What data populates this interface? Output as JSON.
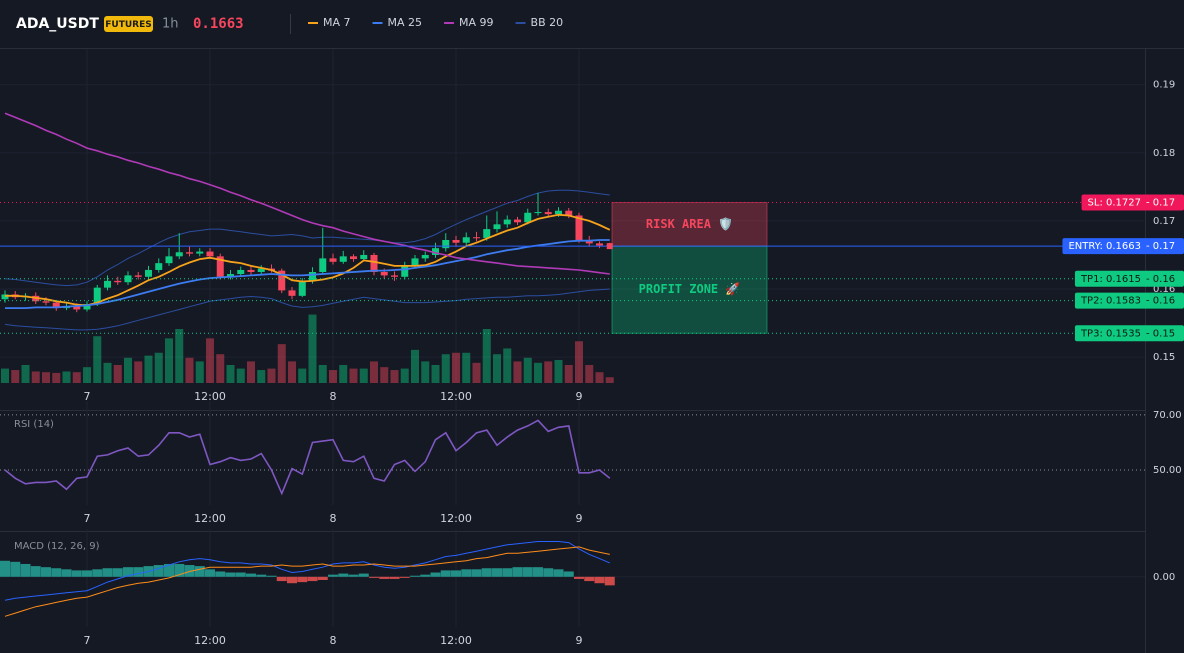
{
  "chart_data": [
    {
      "type": "candlestick",
      "title": "ADA_USDT",
      "badge": "FUTURES",
      "interval": "1h",
      "last_price": 0.1663,
      "categories": [
        null,
        null,
        null,
        null,
        null,
        null,
        null,
        null,
        "7",
        null,
        null,
        null,
        null,
        null,
        null,
        null,
        null,
        null,
        null,
        null,
        "12:00",
        null,
        null,
        null,
        null,
        null,
        null,
        null,
        null,
        null,
        null,
        null,
        "8",
        null,
        null,
        null,
        null,
        null,
        null,
        null,
        null,
        null,
        null,
        null,
        "12:00",
        null,
        null,
        null,
        null,
        null,
        null,
        null,
        null,
        null,
        null,
        null,
        "9",
        null,
        null,
        null
      ],
      "open": [
        0.1585,
        0.1592,
        0.1588,
        0.159,
        0.1582,
        0.158,
        0.1572,
        0.1575,
        0.157,
        0.1578,
        0.1602,
        0.1612,
        0.161,
        0.162,
        0.1618,
        0.1628,
        0.1638,
        0.1648,
        0.1654,
        0.1652,
        0.1655,
        0.1648,
        0.1618,
        0.1622,
        0.1628,
        0.1625,
        0.163,
        0.1627,
        0.1598,
        0.159,
        0.1612,
        0.1625,
        0.1645,
        0.164,
        0.1648,
        0.1644,
        0.165,
        0.1625,
        0.162,
        0.1618,
        0.1635,
        0.1645,
        0.165,
        0.166,
        0.1672,
        0.1668,
        0.1676,
        0.1675,
        0.1688,
        0.1695,
        0.1702,
        0.1698,
        0.1712,
        0.1713,
        0.171,
        0.1715,
        0.1708,
        0.1672,
        0.1667,
        0.1664
      ],
      "high": [
        0.1598,
        0.1597,
        0.1594,
        0.1595,
        0.1588,
        0.1584,
        0.158,
        0.1579,
        0.1582,
        0.1606,
        0.162,
        0.1618,
        0.1626,
        0.1625,
        0.1634,
        0.1645,
        0.166,
        0.1682,
        0.1662,
        0.166,
        0.166,
        0.1652,
        0.1628,
        0.1633,
        0.1634,
        0.1635,
        0.1636,
        0.163,
        0.1603,
        0.1616,
        0.1632,
        0.169,
        0.1652,
        0.1656,
        0.1651,
        0.1657,
        0.1653,
        0.163,
        0.1626,
        0.164,
        0.165,
        0.1655,
        0.1668,
        0.1682,
        0.1678,
        0.1683,
        0.1684,
        0.1708,
        0.1714,
        0.1708,
        0.1706,
        0.1718,
        0.1741,
        0.1718,
        0.172,
        0.1719,
        0.1712,
        0.1678,
        0.167,
        0.1668
      ],
      "low": [
        0.158,
        0.1585,
        0.1583,
        0.1578,
        0.1576,
        0.1568,
        0.1569,
        0.1566,
        0.1567,
        0.1575,
        0.1598,
        0.1606,
        0.1606,
        0.1614,
        0.1613,
        0.1624,
        0.1634,
        0.1644,
        0.1648,
        0.1648,
        0.1644,
        0.1614,
        0.1614,
        0.1618,
        0.162,
        0.1622,
        0.1624,
        0.1594,
        0.1585,
        0.1588,
        0.1608,
        0.1621,
        0.1636,
        0.1637,
        0.164,
        0.1641,
        0.162,
        0.1615,
        0.1612,
        0.1614,
        0.163,
        0.164,
        0.1646,
        0.1655,
        0.1662,
        0.1664,
        0.167,
        0.1671,
        0.1683,
        0.169,
        0.1694,
        0.1695,
        0.1708,
        0.1706,
        0.1706,
        0.1704,
        0.1668,
        0.1662,
        0.166,
        0.1659
      ],
      "close": [
        0.1592,
        0.1588,
        0.159,
        0.1582,
        0.158,
        0.1572,
        0.1575,
        0.157,
        0.1578,
        0.1602,
        0.1612,
        0.161,
        0.162,
        0.1618,
        0.1628,
        0.1638,
        0.1648,
        0.1654,
        0.1652,
        0.1655,
        0.1648,
        0.1618,
        0.1622,
        0.1628,
        0.1625,
        0.163,
        0.1627,
        0.1598,
        0.159,
        0.1612,
        0.1625,
        0.1645,
        0.164,
        0.1648,
        0.1644,
        0.165,
        0.1625,
        0.162,
        0.1618,
        0.1635,
        0.1645,
        0.165,
        0.166,
        0.1672,
        0.1668,
        0.1676,
        0.1675,
        0.1688,
        0.1695,
        0.1702,
        0.1698,
        0.1712,
        0.1713,
        0.171,
        0.1715,
        0.1708,
        0.1672,
        0.1667,
        0.1664,
        0.1663
      ],
      "volume": [
        20,
        18,
        25,
        16,
        15,
        14,
        16,
        15,
        22,
        65,
        28,
        25,
        35,
        30,
        38,
        42,
        62,
        75,
        35,
        30,
        62,
        40,
        25,
        20,
        30,
        18,
        20,
        54,
        30,
        20,
        95,
        25,
        18,
        25,
        20,
        20,
        30,
        22,
        18,
        20,
        46,
        30,
        25,
        40,
        42,
        42,
        28,
        75,
        40,
        48,
        30,
        35,
        28,
        30,
        32,
        25,
        58,
        25,
        15,
        8
      ],
      "up_color": "#0ecb81",
      "down_color": "#f6465d",
      "series": [
        {
          "name": "MA 7",
          "color": "#f7a21b",
          "values": [
            0.159,
            0.159,
            0.1589,
            0.1587,
            0.1585,
            0.1582,
            0.158,
            0.1577,
            0.1576,
            0.158,
            0.1586,
            0.1591,
            0.1598,
            0.1605,
            0.1613,
            0.1618,
            0.1625,
            0.1633,
            0.1639,
            0.1644,
            0.1646,
            0.1643,
            0.164,
            0.1638,
            0.1634,
            0.1631,
            0.1628,
            0.1621,
            0.1613,
            0.1611,
            0.1612,
            0.1614,
            0.1617,
            0.1623,
            0.1631,
            0.1642,
            0.164,
            0.1637,
            0.1634,
            0.1634,
            0.1634,
            0.1635,
            0.164,
            0.1648,
            0.1655,
            0.1663,
            0.1668,
            0.1674,
            0.168,
            0.1686,
            0.169,
            0.1697,
            0.1703,
            0.1706,
            0.1709,
            0.1708,
            0.1704,
            0.17,
            0.1694,
            0.1687
          ]
        },
        {
          "name": "MA 25",
          "color": "#3d7cf0",
          "values": [
            0.1572,
            0.1572,
            0.1572,
            0.1573,
            0.1573,
            0.1573,
            0.1574,
            0.1575,
            0.1576,
            0.1578,
            0.1581,
            0.1584,
            0.1588,
            0.1592,
            0.1596,
            0.16,
            0.1604,
            0.1608,
            0.1611,
            0.1614,
            0.1616,
            0.1617,
            0.1618,
            0.1619,
            0.162,
            0.1621,
            0.1622,
            0.1621,
            0.162,
            0.162,
            0.1621,
            0.1622,
            0.1623,
            0.1624,
            0.1625,
            0.1626,
            0.1627,
            0.1627,
            0.1628,
            0.1629,
            0.1631,
            0.1633,
            0.1635,
            0.1638,
            0.1641,
            0.1644,
            0.1647,
            0.1651,
            0.1654,
            0.1657,
            0.1659,
            0.1662,
            0.1664,
            0.1666,
            0.1668,
            0.167,
            0.1671,
            0.1671,
            0.1672,
            0.1672
          ]
        },
        {
          "name": "MA 99",
          "color": "#b03ab8",
          "values": [
            0.1858,
            0.1852,
            0.1846,
            0.184,
            0.1833,
            0.1827,
            0.182,
            0.1814,
            0.1807,
            0.1803,
            0.1798,
            0.1794,
            0.1789,
            0.1785,
            0.178,
            0.1776,
            0.1771,
            0.1767,
            0.1762,
            0.1758,
            0.1753,
            0.1748,
            0.1742,
            0.1737,
            0.1731,
            0.1726,
            0.172,
            0.1714,
            0.1708,
            0.1702,
            0.1697,
            0.1693,
            0.169,
            0.1685,
            0.1681,
            0.1677,
            0.1673,
            0.167,
            0.1667,
            0.1664,
            0.166,
            0.1657,
            0.1653,
            0.165,
            0.1646,
            0.1644,
            0.1642,
            0.164,
            0.1638,
            0.1636,
            0.1634,
            0.1633,
            0.1632,
            0.1631,
            0.163,
            0.1629,
            0.1628,
            0.1626,
            0.1624,
            0.1622
          ]
        },
        {
          "name": "BB 20",
          "color": "#2b4ea0",
          "upper": [
            0.1615,
            0.1614,
            0.1612,
            0.161,
            0.1608,
            0.1606,
            0.1605,
            0.1606,
            0.161,
            0.1618,
            0.1628,
            0.1636,
            0.1645,
            0.1652,
            0.166,
            0.1668,
            0.1675,
            0.168,
            0.1684,
            0.1686,
            0.1688,
            0.1688,
            0.1686,
            0.1684,
            0.1682,
            0.168,
            0.1678,
            0.1679,
            0.168,
            0.1678,
            0.1675,
            0.1676,
            0.1676,
            0.1675,
            0.1674,
            0.1673,
            0.1672,
            0.167,
            0.1668,
            0.1668,
            0.167,
            0.1674,
            0.168,
            0.1688,
            0.1695,
            0.1702,
            0.1708,
            0.1714,
            0.172,
            0.1726,
            0.173,
            0.1736,
            0.1741,
            0.1744,
            0.1745,
            0.1745,
            0.1744,
            0.1742,
            0.174,
            0.1738
          ],
          "lower": [
            0.1548,
            0.1546,
            0.1545,
            0.1544,
            0.1543,
            0.1542,
            0.1541,
            0.154,
            0.154,
            0.1541,
            0.1543,
            0.1546,
            0.155,
            0.1554,
            0.1558,
            0.1562,
            0.1566,
            0.157,
            0.1574,
            0.1578,
            0.1582,
            0.1584,
            0.1586,
            0.1588,
            0.1589,
            0.1588,
            0.1586,
            0.158,
            0.1575,
            0.1573,
            0.1574,
            0.1576,
            0.1579,
            0.1582,
            0.1585,
            0.1588,
            0.1586,
            0.1584,
            0.1582,
            0.158,
            0.158,
            0.158,
            0.1581,
            0.1582,
            0.1583,
            0.1585,
            0.1586,
            0.1587,
            0.1588,
            0.1588,
            0.1589,
            0.159,
            0.159,
            0.1591,
            0.1592,
            0.1594,
            0.1596,
            0.1598,
            0.1599,
            0.16
          ]
        }
      ],
      "levels": [
        {
          "label": "SL: 0.1727",
          "value": 0.1727,
          "axis_label": "- 0.17",
          "color": "#f0185a",
          "style": "dotted"
        },
        {
          "label": "ENTRY: 0.1663",
          "value": 0.1663,
          "axis_label": "- 0.17",
          "color": "#2962ff",
          "style": "solid"
        },
        {
          "label": "TP1: 0.1615",
          "value": 0.1615,
          "axis_label": "- 0.16",
          "color": "#0ecb81",
          "style": "dotted"
        },
        {
          "label": "TP2: 0.1583",
          "value": 0.1583,
          "axis_label": "- 0.16",
          "color": "#0ecb81",
          "style": "dotted"
        },
        {
          "label": "TP3: 0.1535",
          "value": 0.1535,
          "axis_label": "- 0.15",
          "color": "#0ecb81",
          "style": "dotted"
        }
      ],
      "zones": [
        {
          "label": "RISK AREA 🛡️",
          "color": "#f6465d"
        },
        {
          "label": "PROFIT ZONE 🚀",
          "color": "#0ecb81"
        }
      ],
      "ylim": [
        0.1462,
        0.1951
      ],
      "yticks": [
        0.15,
        0.16,
        0.17,
        0.18,
        0.19
      ],
      "grid": true
    },
    {
      "type": "line",
      "title": "RSI (14)",
      "color": "#7e57c2",
      "values": [
        50,
        47,
        45,
        45.5,
        45.5,
        46,
        43,
        47,
        47.5,
        55,
        55.5,
        57,
        58,
        55,
        55.5,
        59,
        63.5,
        63.5,
        62,
        63,
        52,
        53,
        54.5,
        53.5,
        54,
        56,
        50,
        41.5,
        50.5,
        48.5,
        60,
        60.5,
        61,
        53.5,
        53,
        55,
        47,
        46,
        52,
        53.5,
        49.5,
        53,
        61,
        63.5,
        57,
        60,
        63.5,
        64.5,
        59,
        62,
        64.5,
        66,
        68,
        64,
        65.5,
        66,
        49,
        49,
        50,
        47
      ],
      "ylim": [
        37.3,
        73.6
      ],
      "yticks": [
        {
          "value": 70,
          "label": "70.00"
        },
        {
          "value": 50,
          "label": "50.00"
        }
      ]
    },
    {
      "type": "macd",
      "title": "MACD (12, 26, 9)",
      "histogram": [
        0.0015,
        0.0014,
        0.0012,
        0.001,
        0.0009,
        0.0008,
        0.0007,
        0.0006,
        0.0006,
        0.0007,
        0.0008,
        0.0008,
        0.0009,
        0.0009,
        0.001,
        0.0011,
        0.0012,
        0.0012,
        0.0011,
        0.001,
        0.0007,
        0.0005,
        0.0004,
        0.0004,
        0.0003,
        0.0002,
        0.0001,
        -0.0004,
        -0.0006,
        -0.0005,
        -0.0004,
        -0.0003,
        0.0002,
        0.0003,
        0.0002,
        0.0003,
        -0.0001,
        -0.0002,
        -0.0002,
        -0.0001,
        0.0001,
        0.0002,
        0.0004,
        0.0006,
        0.0006,
        0.0007,
        0.0007,
        0.0008,
        0.0008,
        0.0008,
        0.0009,
        0.0009,
        0.0009,
        0.0008,
        0.0007,
        0.0005,
        -0.0002,
        -0.0004,
        -0.0006,
        -0.0008
      ],
      "macd": [
        -0.0022,
        -0.002,
        -0.0019,
        -0.0018,
        -0.0017,
        -0.0016,
        -0.0015,
        -0.0014,
        -0.0013,
        -0.0009,
        -0.0005,
        -0.0002,
        0.0001,
        0.0003,
        0.0005,
        0.0008,
        0.0011,
        0.0014,
        0.0016,
        0.0017,
        0.0016,
        0.0014,
        0.0013,
        0.0013,
        0.0012,
        0.0012,
        0.0011,
        0.0007,
        0.0004,
        0.0005,
        0.0007,
        0.0009,
        0.0012,
        0.0013,
        0.0013,
        0.0014,
        0.0011,
        0.0009,
        0.0008,
        0.0009,
        0.0011,
        0.0013,
        0.0016,
        0.0019,
        0.002,
        0.0022,
        0.0024,
        0.0026,
        0.0028,
        0.003,
        0.0031,
        0.0032,
        0.0033,
        0.0033,
        0.0033,
        0.0032,
        0.0026,
        0.0021,
        0.0017,
        0.0013
      ],
      "signal": [
        -0.0037,
        -0.0034,
        -0.0031,
        -0.0028,
        -0.0026,
        -0.0024,
        -0.0022,
        -0.002,
        -0.0019,
        -0.0016,
        -0.0013,
        -0.001,
        -0.0008,
        -0.0006,
        -0.0005,
        -0.0003,
        -0.0001,
        0.0002,
        0.0005,
        0.0007,
        0.0009,
        0.0009,
        0.0009,
        0.0009,
        0.0009,
        0.001,
        0.001,
        0.0011,
        0.001,
        0.001,
        0.0011,
        0.0012,
        0.001,
        0.001,
        0.0011,
        0.0011,
        0.0012,
        0.0011,
        0.001,
        0.001,
        0.001,
        0.0011,
        0.0012,
        0.0013,
        0.0014,
        0.0015,
        0.0017,
        0.0018,
        0.002,
        0.0022,
        0.0022,
        0.0023,
        0.0024,
        0.0025,
        0.0026,
        0.0027,
        0.0028,
        0.0025,
        0.0023,
        0.0021
      ],
      "macd_color": "#2962ff",
      "signal_color": "#ff8c1a",
      "up_color": "#26a69a",
      "down_color": "#ef5350",
      "ylim": [
        -0.0047,
        0.0041
      ],
      "yticks": [
        {
          "value": 0,
          "label": "0.00"
        }
      ]
    }
  ]
}
